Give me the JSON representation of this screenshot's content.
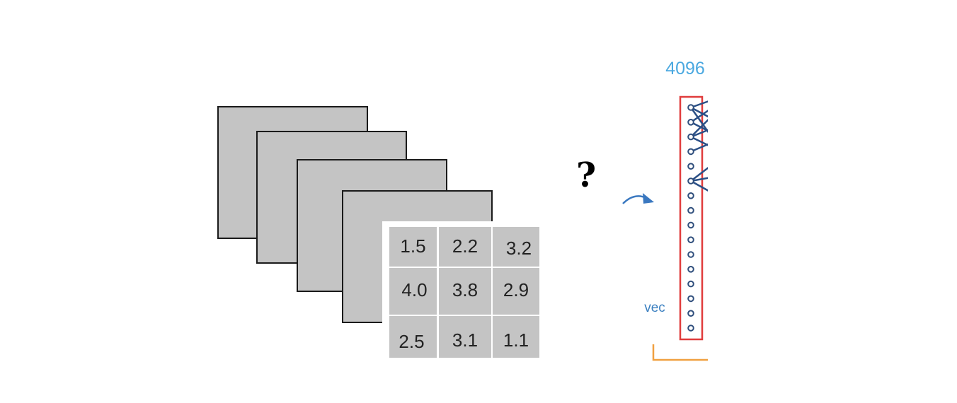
{
  "feature_maps": {
    "count": 4,
    "fill": "#c4c4c4",
    "stroke": "#1a1a1a"
  },
  "grid": {
    "fill": "#c4c4c4",
    "line_color": "#ffffff",
    "text_color": "#222222",
    "cells": [
      [
        "1.5",
        "2.2",
        "3.2"
      ],
      [
        "4.0",
        "3.8",
        "2.9"
      ],
      [
        "2.5",
        "3.1",
        "1.1"
      ]
    ]
  },
  "question_mark": "?",
  "vector": {
    "size_label": "4096",
    "label": "vec",
    "node_count": 16,
    "box_color": "#e03c3c",
    "node_color": "#2f4e7c",
    "label_color": "#4aa8e0",
    "vec_label_color": "#3a7fc0",
    "bracket_color": "#f0a040",
    "connection_color": "#2a4f86"
  },
  "arrow_color": "#3a78c0"
}
